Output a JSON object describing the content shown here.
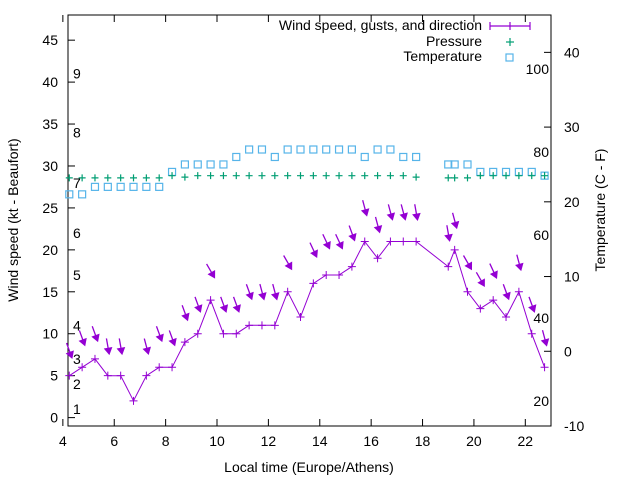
{
  "chart_data": {
    "type": "line",
    "xlabel": "Local time (Europe/Athens)",
    "ylabel_left": "Wind speed (kt - Beaufort)",
    "ylabel_right": "Temperature (C - F)",
    "x_ticks": [
      "4",
      "6",
      "8",
      "10",
      "12",
      "14",
      "16",
      "18",
      "20",
      "22"
    ],
    "y_left_ticks": [
      "0",
      "5",
      "10",
      "15",
      "20",
      "25",
      "30",
      "35",
      "40",
      "45"
    ],
    "y_right_ticks": [
      "-10",
      "0",
      "10",
      "20",
      "30",
      "40"
    ],
    "beaufort_labels": [
      "1",
      "2",
      "3",
      "4",
      "5",
      "6",
      "7",
      "8",
      "9"
    ],
    "fahrenheit_labels": [
      "20",
      "40",
      "60",
      "80",
      "100"
    ],
    "xlim": [
      4.2,
      23
    ],
    "ylim_left": [
      -1,
      48
    ],
    "ylim_right": [
      -10,
      45
    ],
    "grid": false,
    "legend_position": "top-right",
    "colors": {
      "wind": "#9400d3",
      "pressure": "#009e73",
      "temperature": "#56b4e9"
    },
    "series": [
      {
        "name": "Wind speed, gusts, and direction",
        "x": [
          4.25,
          4.75,
          5.25,
          5.75,
          6.25,
          6.75,
          7.25,
          7.75,
          8.25,
          8.75,
          9.25,
          9.75,
          10.25,
          10.75,
          11.25,
          11.75,
          12.25,
          12.75,
          13.25,
          13.75,
          14.25,
          14.75,
          15.25,
          15.75,
          16.25,
          16.75,
          17.25,
          17.75,
          19.0,
          19.25,
          19.75,
          20.25,
          20.75,
          21.25,
          21.75,
          22.25,
          22.75
        ],
        "values": [
          5,
          6,
          7,
          5,
          5,
          2,
          5,
          6,
          6,
          9,
          10,
          14,
          10,
          10,
          11,
          11,
          11,
          15,
          12,
          16,
          17,
          17,
          18,
          21,
          19,
          21,
          21,
          21,
          18,
          20,
          15,
          13,
          14,
          12,
          15,
          10,
          6
        ],
        "gusts": [
          8,
          9.5,
          10,
          8.5,
          8.5,
          null,
          8.5,
          10,
          9.5,
          12.5,
          13.5,
          17.5,
          13.5,
          13.5,
          15,
          15,
          15,
          18.5,
          null,
          20,
          21,
          21,
          22,
          25,
          23,
          24.5,
          24.5,
          24.5,
          22,
          23.5,
          18.5,
          16.5,
          17.5,
          15,
          18.5,
          13.5,
          9.5
        ]
      },
      {
        "name": "Pressure",
        "x": [
          4.25,
          4.75,
          5.25,
          5.75,
          6.25,
          6.75,
          7.25,
          7.75,
          8.25,
          8.75,
          9.25,
          9.75,
          10.25,
          10.75,
          11.25,
          11.75,
          12.25,
          12.75,
          13.25,
          13.75,
          14.25,
          14.75,
          15.25,
          15.75,
          16.25,
          16.75,
          17.25,
          17.75,
          19.0,
          19.25,
          19.75,
          20.25,
          20.75,
          21.25,
          21.75,
          22.25,
          22.75
        ],
        "values": [
          23.2,
          23.2,
          23.2,
          23.2,
          23.2,
          23.2,
          23.2,
          23.2,
          23.5,
          23.3,
          23.5,
          23.5,
          23.5,
          23.5,
          23.5,
          23.5,
          23.5,
          23.5,
          23.5,
          23.5,
          23.5,
          23.5,
          23.5,
          23.5,
          23.5,
          23.5,
          23.5,
          23.3,
          23.2,
          23.2,
          23.2,
          23.5,
          23.5,
          23.5,
          23.5,
          23.5,
          23.5
        ]
      },
      {
        "name": "Temperature",
        "x": [
          4.25,
          4.75,
          5.25,
          5.75,
          6.25,
          6.75,
          7.25,
          7.75,
          8.25,
          8.75,
          9.25,
          9.75,
          10.25,
          10.75,
          11.25,
          11.75,
          12.25,
          12.75,
          13.25,
          13.75,
          14.25,
          14.75,
          15.25,
          15.75,
          16.25,
          16.75,
          17.25,
          17.75,
          19.0,
          19.25,
          19.75,
          20.25,
          20.75,
          21.25,
          21.75,
          22.25,
          22.75
        ],
        "values": [
          21,
          21,
          22,
          22,
          22,
          22,
          22,
          22,
          24,
          25,
          25,
          25,
          25,
          26,
          27,
          27,
          26,
          27,
          27,
          27,
          27,
          27,
          27,
          26,
          27,
          27,
          26,
          26,
          25,
          25,
          25,
          24,
          24,
          24,
          24,
          24,
          23.5
        ]
      }
    ],
    "wind_direction_arrows": {
      "x": [
        4.25,
        4.75,
        5.25,
        5.75,
        6.25,
        7.25,
        7.75,
        8.25,
        8.75,
        9.25,
        9.75,
        10.25,
        10.75,
        11.25,
        11.75,
        12.25,
        12.75,
        13.75,
        14.25,
        14.75,
        15.25,
        15.75,
        16.25,
        16.75,
        17.25,
        17.75,
        19.0,
        19.25,
        19.75,
        20.25,
        20.75,
        21.25,
        21.75,
        22.25,
        22.75
      ],
      "y": [
        8,
        9.5,
        10,
        8.5,
        8.5,
        8.5,
        10,
        9.5,
        12.5,
        13.5,
        17.5,
        13.5,
        13.5,
        15,
        15,
        15,
        18.5,
        20,
        21,
        21,
        22,
        25,
        23,
        24.5,
        24.5,
        24.5,
        22,
        23.5,
        18.5,
        16.5,
        17.5,
        15,
        18.5,
        13.5,
        9.5
      ],
      "direction_deg": [
        20,
        20,
        20,
        10,
        10,
        15,
        20,
        20,
        20,
        20,
        30,
        20,
        20,
        20,
        15,
        15,
        30,
        25,
        25,
        25,
        20,
        15,
        15,
        15,
        15,
        10,
        10,
        15,
        30,
        30,
        25,
        20,
        15,
        20,
        15
      ]
    }
  }
}
